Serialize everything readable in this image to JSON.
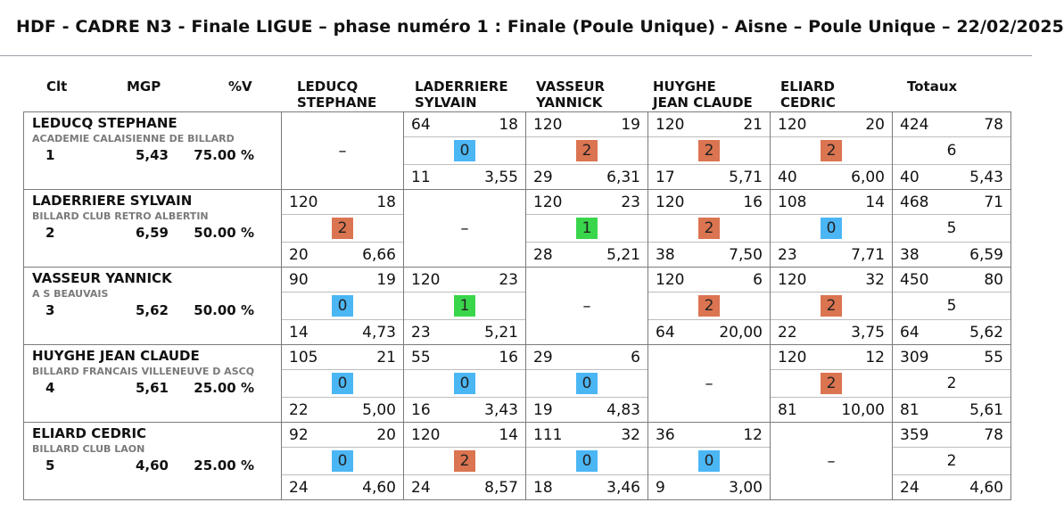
{
  "title": "HDF - CADRE N3 - Finale LIGUE – phase numéro 1 : Finale (Poule Unique) - Aisne – Poule Unique – 22/02/2025",
  "colors": {
    "win": "#db7450",
    "draw": "#39d64c",
    "loss": "#4bb6f4"
  },
  "headers": {
    "clt": "Clt",
    "mgp": "MGP",
    "pv": "%V",
    "totaux": "Totaux",
    "players": [
      {
        "l1": "LEDUCQ",
        "l2": "STEPHANE"
      },
      {
        "l1": "LADERRIERE",
        "l2": "SYLVAIN"
      },
      {
        "l1": "VASSEUR",
        "l2": "YANNICK"
      },
      {
        "l1": "HUYGHE",
        "l2": "JEAN CLAUDE"
      },
      {
        "l1": "ELIARD",
        "l2": "CEDRIC"
      }
    ]
  },
  "dash": "–",
  "rows": [
    {
      "name": "LEDUCQ STEPHANE",
      "club": "ACADEMIE CALAISIENNE DE BILLARD",
      "clt": "1",
      "mgp": "5,43",
      "pct": "75.00 %",
      "cells": [
        null,
        {
          "pts": "64",
          "rep": "18",
          "res": "0",
          "ser": "11",
          "moy": "3,55"
        },
        {
          "pts": "120",
          "rep": "19",
          "res": "2",
          "ser": "29",
          "moy": "6,31"
        },
        {
          "pts": "120",
          "rep": "21",
          "res": "2",
          "ser": "17",
          "moy": "5,71"
        },
        {
          "pts": "120",
          "rep": "20",
          "res": "2",
          "ser": "40",
          "moy": "6,00"
        }
      ],
      "tot": {
        "pts": "424",
        "rep": "78",
        "res": "6",
        "ser": "40",
        "moy": "5,43"
      }
    },
    {
      "name": "LADERRIERE SYLVAIN",
      "club": "BILLARD CLUB RETRO ALBERTIN",
      "clt": "2",
      "mgp": "6,59",
      "pct": "50.00 %",
      "cells": [
        {
          "pts": "120",
          "rep": "18",
          "res": "2",
          "ser": "20",
          "moy": "6,66"
        },
        null,
        {
          "pts": "120",
          "rep": "23",
          "res": "1",
          "ser": "28",
          "moy": "5,21"
        },
        {
          "pts": "120",
          "rep": "16",
          "res": "2",
          "ser": "38",
          "moy": "7,50"
        },
        {
          "pts": "108",
          "rep": "14",
          "res": "0",
          "ser": "23",
          "moy": "7,71"
        }
      ],
      "tot": {
        "pts": "468",
        "rep": "71",
        "res": "5",
        "ser": "38",
        "moy": "6,59"
      }
    },
    {
      "name": "VASSEUR YANNICK",
      "club": "A S BEAUVAIS",
      "clt": "3",
      "mgp": "5,62",
      "pct": "50.00 %",
      "cells": [
        {
          "pts": "90",
          "rep": "19",
          "res": "0",
          "ser": "14",
          "moy": "4,73"
        },
        {
          "pts": "120",
          "rep": "23",
          "res": "1",
          "ser": "23",
          "moy": "5,21"
        },
        null,
        {
          "pts": "120",
          "rep": "6",
          "res": "2",
          "ser": "64",
          "moy": "20,00"
        },
        {
          "pts": "120",
          "rep": "32",
          "res": "2",
          "ser": "22",
          "moy": "3,75"
        }
      ],
      "tot": {
        "pts": "450",
        "rep": "80",
        "res": "5",
        "ser": "64",
        "moy": "5,62"
      }
    },
    {
      "name": "HUYGHE JEAN CLAUDE",
      "club": "BILLARD FRANCAIS VILLENEUVE D ASCQ",
      "clt": "4",
      "mgp": "5,61",
      "pct": "25.00 %",
      "cells": [
        {
          "pts": "105",
          "rep": "21",
          "res": "0",
          "ser": "22",
          "moy": "5,00"
        },
        {
          "pts": "55",
          "rep": "16",
          "res": "0",
          "ser": "16",
          "moy": "3,43"
        },
        {
          "pts": "29",
          "rep": "6",
          "res": "0",
          "ser": "19",
          "moy": "4,83"
        },
        null,
        {
          "pts": "120",
          "rep": "12",
          "res": "2",
          "ser": "81",
          "moy": "10,00"
        }
      ],
      "tot": {
        "pts": "309",
        "rep": "55",
        "res": "2",
        "ser": "81",
        "moy": "5,61"
      }
    },
    {
      "name": "ELIARD CEDRIC",
      "club": "BILLARD CLUB LAON",
      "clt": "5",
      "mgp": "4,60",
      "pct": "25.00 %",
      "cells": [
        {
          "pts": "92",
          "rep": "20",
          "res": "0",
          "ser": "24",
          "moy": "4,60"
        },
        {
          "pts": "120",
          "rep": "14",
          "res": "2",
          "ser": "24",
          "moy": "8,57"
        },
        {
          "pts": "111",
          "rep": "32",
          "res": "0",
          "ser": "18",
          "moy": "3,46"
        },
        {
          "pts": "36",
          "rep": "12",
          "res": "0",
          "ser": "9",
          "moy": "3,00"
        },
        null
      ],
      "tot": {
        "pts": "359",
        "rep": "78",
        "res": "2",
        "ser": "24",
        "moy": "4,60"
      }
    }
  ]
}
